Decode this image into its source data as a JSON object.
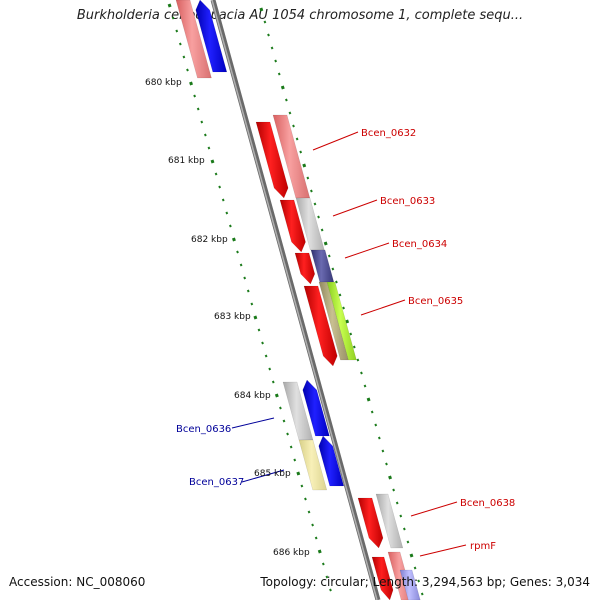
{
  "title": "Burkholderia cenocepacia AU 1054 chromosome 1, complete sequ...",
  "footer": {
    "accession": "Accession: NC_008060",
    "summary": "Topology: circular; Length: 3,294,563 bp; Genes: 3,034"
  },
  "scale_labels": [
    "680 kbp",
    "681 kbp",
    "682 kbp",
    "683 kbp",
    "684 kbp",
    "685 kbp",
    "686 kbp"
  ],
  "gene_labels": [
    {
      "text": "Bcen_0632",
      "color": "#cc0000"
    },
    {
      "text": "Bcen_0633",
      "color": "#cc0000"
    },
    {
      "text": "Bcen_0634",
      "color": "#cc0000"
    },
    {
      "text": "Bcen_0635",
      "color": "#cc0000"
    },
    {
      "text": "Bcen_0636",
      "color": "#000099"
    },
    {
      "text": "Bcen_0637",
      "color": "#000099"
    },
    {
      "text": "Bcen_0638",
      "color": "#cc0000"
    },
    {
      "text": "rpmF",
      "color": "#cc0000"
    }
  ],
  "colors": {
    "backbone": "#888888",
    "forward_cds": "#ff0000",
    "reverse_cds": "#0000ff",
    "tick": "#1a7a1a"
  }
}
